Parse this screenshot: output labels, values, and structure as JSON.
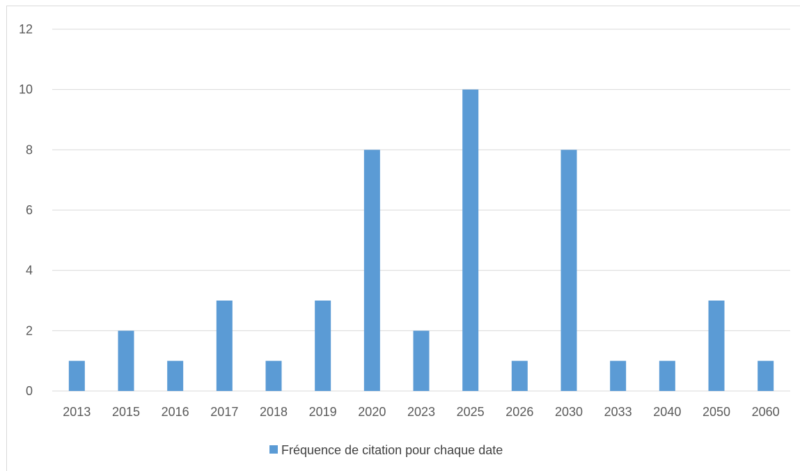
{
  "chart_data": {
    "type": "bar",
    "categories": [
      "2013",
      "2015",
      "2016",
      "2017",
      "2018",
      "2019",
      "2020",
      "2023",
      "2025",
      "2026",
      "2030",
      "2033",
      "2040",
      "2050",
      "2060"
    ],
    "series": [
      {
        "name": "Fréquence de citation pour chaque date",
        "values": [
          1,
          2,
          1,
          3,
          1,
          3,
          8,
          2,
          10,
          1,
          8,
          1,
          1,
          3,
          1
        ],
        "color": "#5b9bd5"
      }
    ],
    "ylim": [
      0,
      12
    ],
    "yticks": [
      0,
      2,
      4,
      6,
      8,
      10,
      12
    ],
    "title": "",
    "xlabel": "",
    "ylabel": "",
    "grid": true,
    "legend": "bottom-center",
    "colors": {
      "bar": "#5b9bd5",
      "grid": "#d9d9d9",
      "text": "#595959"
    }
  }
}
